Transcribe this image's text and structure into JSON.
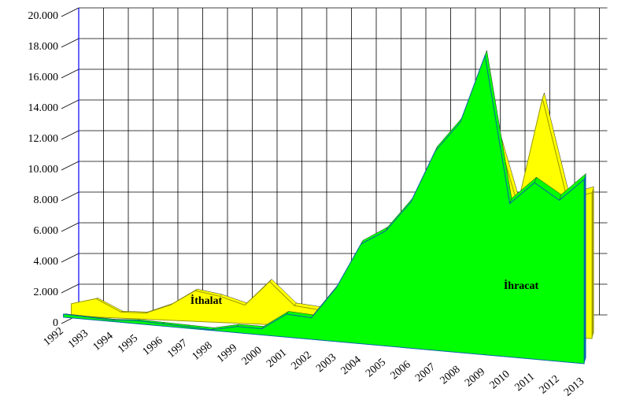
{
  "chart_data": {
    "type": "area3d",
    "categories": [
      "1992",
      "1993",
      "1994",
      "1995",
      "1996",
      "1997",
      "1998",
      "1999",
      "2000",
      "2001",
      "2002",
      "2003",
      "2004",
      "2005",
      "2006",
      "2007",
      "2008",
      "2009",
      "2010",
      "2011",
      "2012",
      "2013"
    ],
    "series": [
      {
        "name": "İthalat",
        "color": "#ffff00",
        "values": [
          800,
          1200,
          400,
          400,
          1000,
          2000,
          1700,
          1200,
          2800,
          1300,
          1100,
          2500,
          4500,
          5500,
          7000,
          10000,
          12000,
          14000,
          8500,
          15500,
          9000,
          9500
        ]
      },
      {
        "name": "İhracat",
        "color": "#00ff00",
        "values": [
          200,
          150,
          100,
          200,
          150,
          100,
          50,
          400,
          400,
          1500,
          1400,
          3500,
          6500,
          7500,
          9500,
          13000,
          15000,
          19500,
          10000,
          11500,
          10500,
          12000
        ]
      }
    ],
    "ylim": [
      0,
      20000
    ],
    "yticks": [
      0,
      {
        "value": 2000,
        "label": "2.000"
      },
      {
        "value": 4000,
        "label": "4.000"
      },
      {
        "value": 6000,
        "label": "6.000"
      },
      {
        "value": 8000,
        "label": "8.000"
      },
      {
        "value": 10000,
        "label": "10.000"
      },
      {
        "value": 12000,
        "label": "12.000"
      },
      {
        "value": 14000,
        "label": "14.000"
      },
      {
        "value": 16000,
        "label": "16.000"
      },
      {
        "value": 18000,
        "label": "18.000"
      },
      {
        "value": 20000,
        "label": "20.000"
      }
    ],
    "grid": true
  }
}
